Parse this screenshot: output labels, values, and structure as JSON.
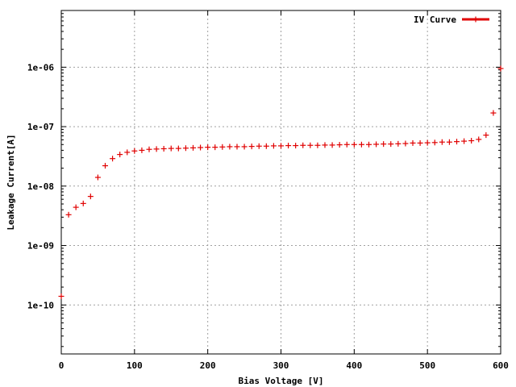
{
  "chart_data": {
    "type": "scatter",
    "xlabel": "Bias Voltage [V]",
    "ylabel": "Leakage Current[A]",
    "xlim": [
      0,
      600
    ],
    "ylim": [
      1.5e-11,
      9e-06
    ],
    "yscale": "log",
    "grid": true,
    "legend_position": "top-right",
    "x_ticks": [
      0,
      100,
      200,
      300,
      400,
      500,
      600
    ],
    "x_tick_labels": [
      "0",
      "100",
      "200",
      "300",
      "400",
      "500",
      "600"
    ],
    "y_ticks": [
      1e-10,
      1e-09,
      1e-08,
      1e-07,
      1e-06
    ],
    "y_tick_labels": [
      "1e-10",
      "1e-09",
      "1e-08",
      "1e-07",
      "1e-06"
    ],
    "series": [
      {
        "name": "IV Curve",
        "color": "#e00000",
        "marker": "plus",
        "x": [
          0,
          10,
          20,
          30,
          40,
          50,
          60,
          70,
          80,
          90,
          100,
          110,
          120,
          130,
          140,
          150,
          160,
          170,
          180,
          190,
          200,
          210,
          220,
          230,
          240,
          250,
          260,
          270,
          280,
          290,
          300,
          310,
          320,
          330,
          340,
          350,
          360,
          370,
          380,
          390,
          400,
          410,
          420,
          430,
          440,
          450,
          460,
          470,
          480,
          490,
          500,
          510,
          520,
          530,
          540,
          550,
          560,
          570,
          580,
          590,
          600
        ],
        "y": [
          1.4e-10,
          3.3e-09,
          4.4e-09,
          5.1e-09,
          6.7e-09,
          1.4e-08,
          2.2e-08,
          2.9e-08,
          3.4e-08,
          3.7e-08,
          3.9e-08,
          4e-08,
          4.15e-08,
          4.2e-08,
          4.25e-08,
          4.3e-08,
          4.3e-08,
          4.35e-08,
          4.4e-08,
          4.45e-08,
          4.5e-08,
          4.5e-08,
          4.55e-08,
          4.6e-08,
          4.6e-08,
          4.6e-08,
          4.65e-08,
          4.7e-08,
          4.7e-08,
          4.75e-08,
          4.75e-08,
          4.8e-08,
          4.8e-08,
          4.85e-08,
          4.85e-08,
          4.85e-08,
          4.9e-08,
          4.9e-08,
          4.95e-08,
          5e-08,
          5e-08,
          5e-08,
          5e-08,
          5.05e-08,
          5.1e-08,
          5.1e-08,
          5.15e-08,
          5.2e-08,
          5.3e-08,
          5.3e-08,
          5.35e-08,
          5.4e-08,
          5.5e-08,
          5.5e-08,
          5.6e-08,
          5.7e-08,
          5.8e-08,
          6.1e-08,
          7.2e-08,
          1.7e-07,
          9.5e-07
        ]
      }
    ]
  }
}
